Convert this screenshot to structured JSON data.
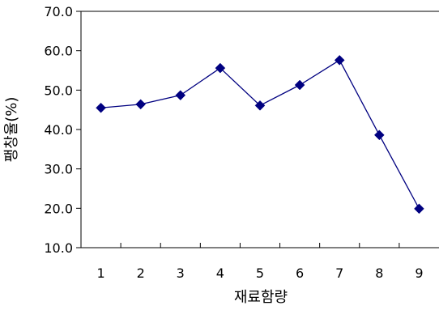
{
  "chart_data": {
    "type": "line",
    "xlabel": "재료함량",
    "ylabel": "팽창율(%)",
    "ylim": [
      10.0,
      70.0
    ],
    "ytick_labels": [
      "10.0",
      "20.0",
      "30.0",
      "40.0",
      "50.0",
      "60.0",
      "70.0"
    ],
    "categories": [
      "1",
      "2",
      "3",
      "4",
      "5",
      "6",
      "7",
      "8",
      "9"
    ],
    "series": [
      {
        "values": [
          45.5,
          46.4,
          48.7,
          55.6,
          46.1,
          51.3,
          57.6,
          38.6,
          19.9
        ],
        "color": "#000080",
        "marker": "diamond"
      }
    ],
    "grid": false,
    "frame": "open-right"
  }
}
